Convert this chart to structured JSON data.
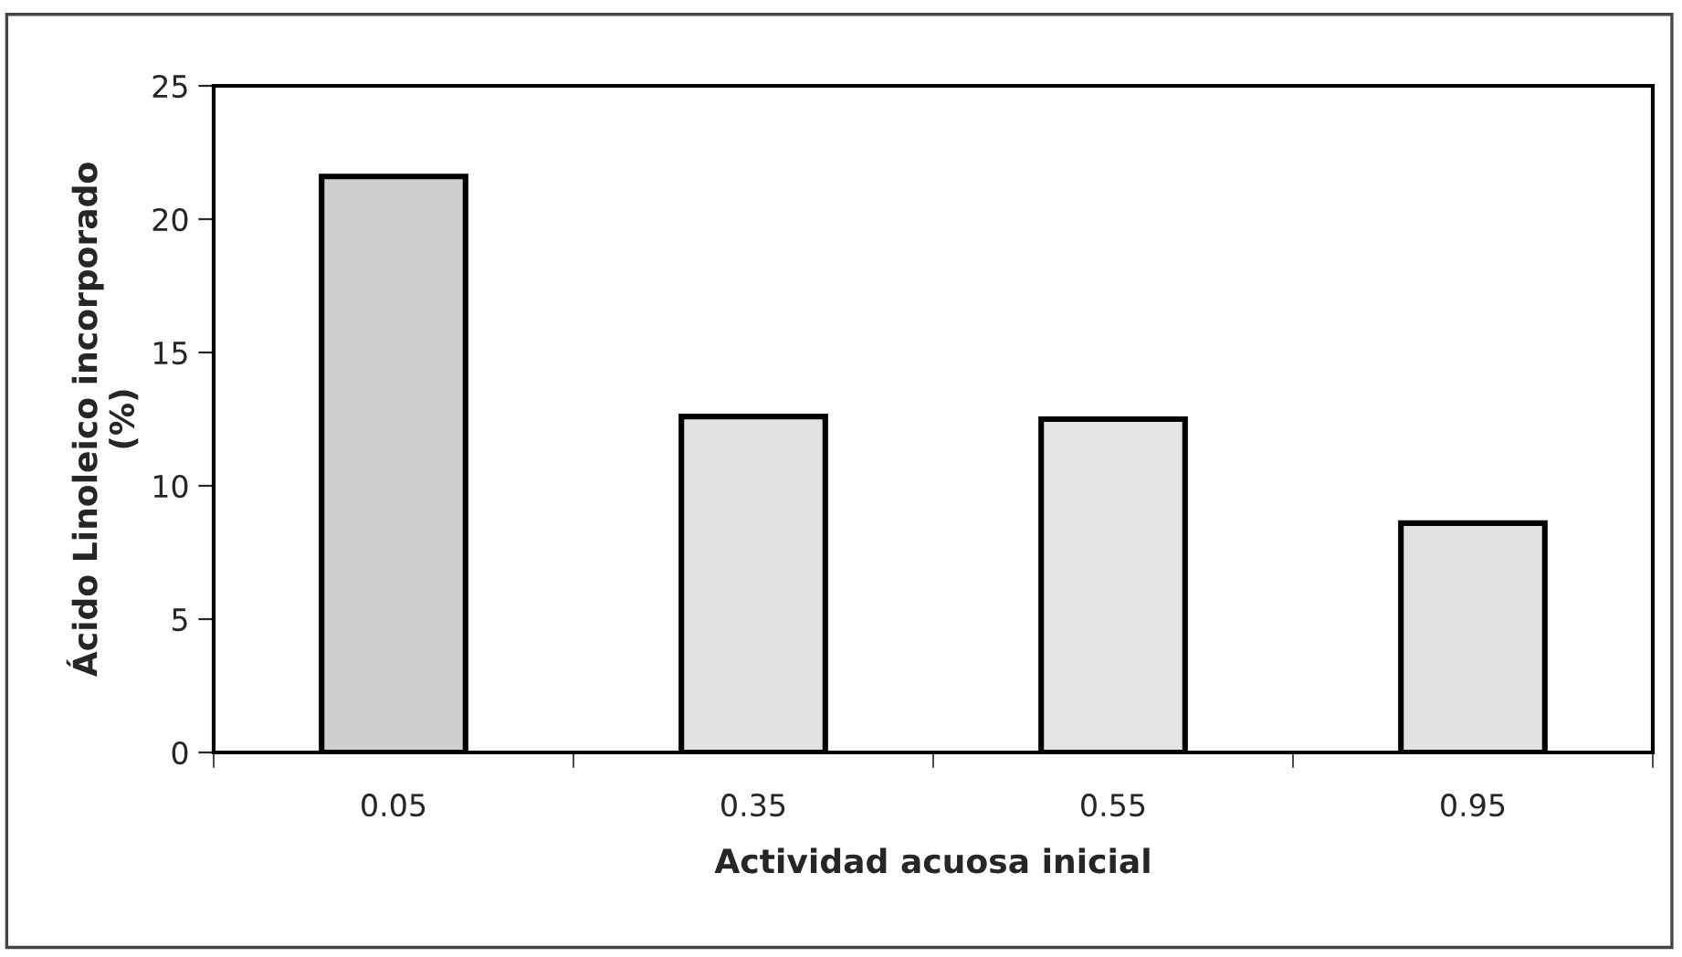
{
  "chart_data": {
    "type": "bar",
    "xlabel": "Actividad acuosa inicial",
    "ylabel": "Ácido Linoleico incorporado\n(%)",
    "categories": [
      "0.05",
      "0.35",
      "0.55",
      "0.95"
    ],
    "values": [
      21.6,
      12.6,
      12.5,
      8.6
    ],
    "colors": [
      "#cfcfcf",
      "#e2e2e2",
      "#e4e4e4",
      "#e2e2e2"
    ],
    "ylim": [
      0,
      25
    ],
    "yticks": [
      0,
      5,
      10,
      15,
      20,
      25
    ],
    "grid": false,
    "legend": false
  }
}
